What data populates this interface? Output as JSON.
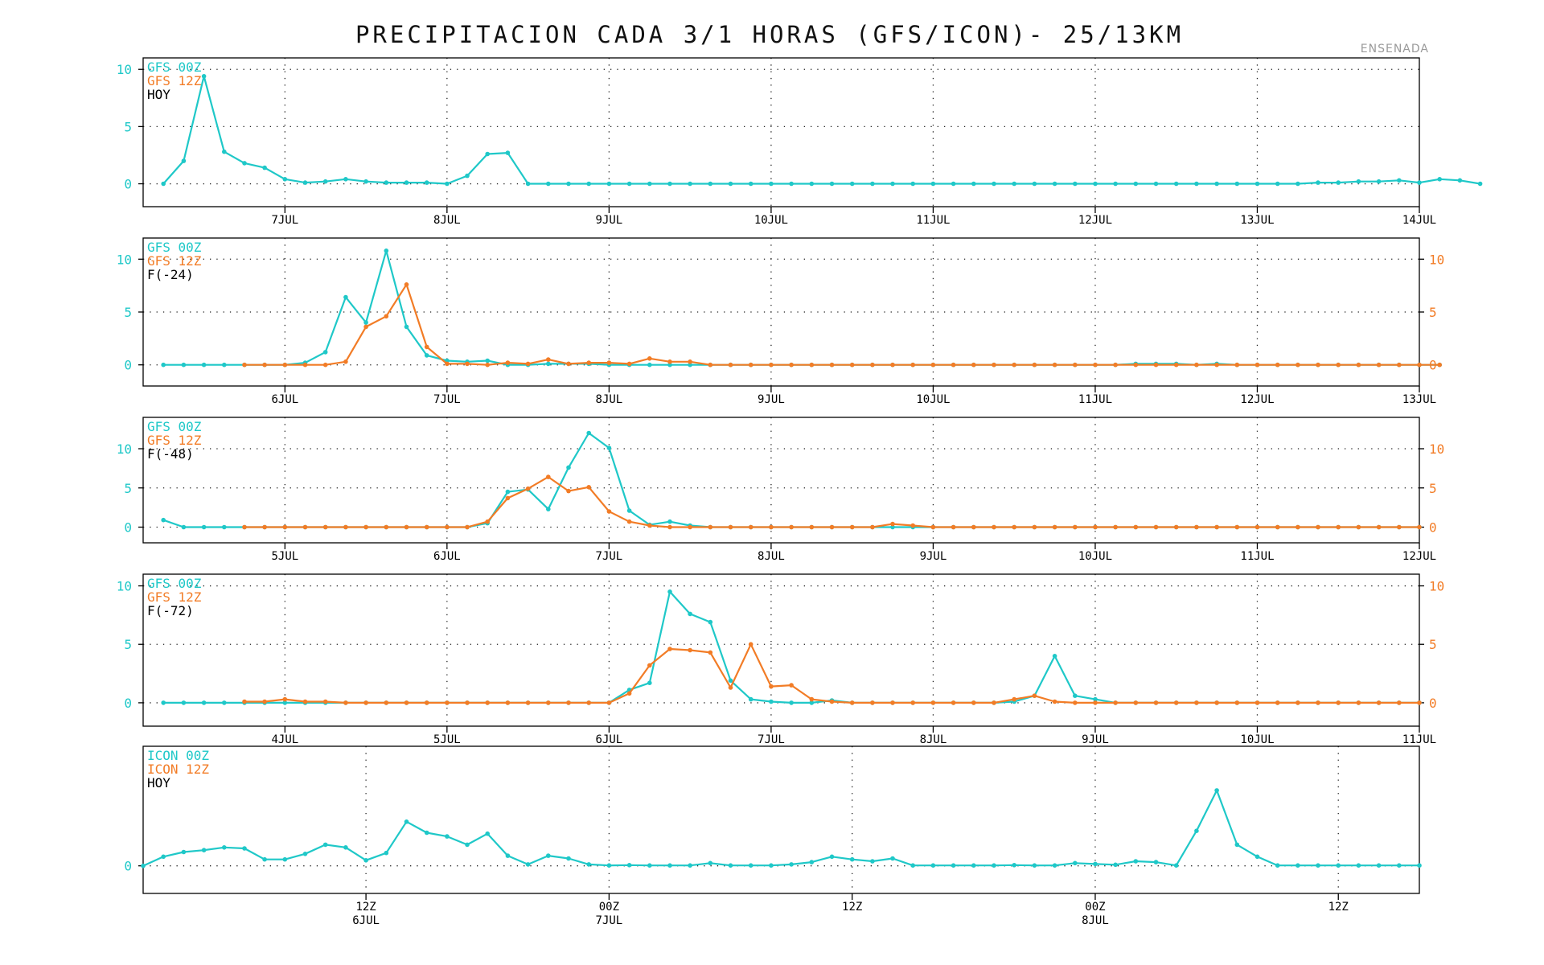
{
  "header": {
    "title": "PRECIPITACION CADA 3/1 HORAS (GFS/ICON)- 25/13KM",
    "site": "ENSENADA"
  },
  "colors": {
    "cyan": "#1fc8c8",
    "orange": "#f27c26",
    "axis": "#000000"
  },
  "chart_data": [
    {
      "type": "line",
      "title": "",
      "legend": [
        "GFS 00Z",
        "GFS 12Z",
        "HOY"
      ],
      "legend_placement": "top-left",
      "x_unit": "hours since 5JUL 00Z",
      "xlim": [
        27,
        216
      ],
      "ylim": [
        -2,
        11
      ],
      "y_ticks_left": [
        "0",
        "5",
        "10"
      ],
      "y_ticks_right": [],
      "x_ticks": [
        {
          "x": 48,
          "label": "7JUL"
        },
        {
          "x": 72,
          "label": "8JUL"
        },
        {
          "x": 96,
          "label": "9JUL"
        },
        {
          "x": 120,
          "label": "10JUL"
        },
        {
          "x": 144,
          "label": "11JUL"
        },
        {
          "x": 168,
          "label": "12JUL"
        },
        {
          "x": 192,
          "label": "13JUL"
        },
        {
          "x": 216,
          "label": "14JUL"
        }
      ],
      "series": [
        {
          "name": "GFS 00Z",
          "color": "cyan",
          "x_start": 30,
          "step": 3,
          "values": [
            0,
            2,
            9.4,
            2.8,
            1.8,
            1.4,
            0.4,
            0.1,
            0.2,
            0.4,
            0.2,
            0.1,
            0.1,
            0.1,
            0,
            0.7,
            2.6,
            2.7,
            0,
            0,
            0,
            0,
            0,
            0,
            0,
            0,
            0,
            0,
            0,
            0,
            0,
            0,
            0,
            0,
            0,
            0,
            0,
            0,
            0,
            0,
            0,
            0,
            0,
            0,
            0,
            0,
            0,
            0,
            0,
            0,
            0,
            0,
            0,
            0,
            0,
            0,
            0,
            0.1,
            0.1,
            0.2,
            0.2,
            0.3,
            0.1,
            0.4,
            0.3,
            0
          ]
        }
      ]
    },
    {
      "type": "line",
      "title": "",
      "legend": [
        "GFS 00Z",
        "GFS 12Z",
        "F(-24)"
      ],
      "legend_placement": "top-left",
      "x_unit": "hours since 5JUL 00Z",
      "xlim": [
        3,
        192
      ],
      "ylim": [
        -2,
        12
      ],
      "y_ticks_left": [
        "0",
        "5",
        "10"
      ],
      "y_ticks_right": [
        "0",
        "5",
        "10"
      ],
      "x_ticks": [
        {
          "x": 24,
          "label": "6JUL"
        },
        {
          "x": 48,
          "label": "7JUL"
        },
        {
          "x": 72,
          "label": "8JUL"
        },
        {
          "x": 96,
          "label": "9JUL"
        },
        {
          "x": 120,
          "label": "10JUL"
        },
        {
          "x": 144,
          "label": "11JUL"
        },
        {
          "x": 168,
          "label": "12JUL"
        },
        {
          "x": 192,
          "label": "13JUL"
        }
      ],
      "series": [
        {
          "name": "GFS 00Z",
          "color": "cyan",
          "x_start": 6,
          "step": 3,
          "values": [
            0,
            0,
            0,
            0,
            0,
            0,
            0,
            0.2,
            1.2,
            6.4,
            4,
            10.8,
            3.6,
            0.9,
            0.4,
            0.3,
            0.4,
            0,
            0,
            0.1,
            0.1,
            0.1,
            0,
            0,
            0,
            0,
            0,
            0,
            0,
            0,
            0,
            0,
            0,
            0,
            0,
            0,
            0,
            0,
            0,
            0,
            0,
            0,
            0,
            0,
            0,
            0,
            0,
            0,
            0.1,
            0.1,
            0.1,
            0,
            0.1,
            0,
            0,
            0,
            0,
            0,
            0,
            0,
            0,
            0,
            0,
            0
          ]
        },
        {
          "name": "GFS 12Z",
          "color": "orange",
          "x_start": 18,
          "step": 3,
          "values": [
            0,
            0,
            0,
            0,
            0,
            0.3,
            3.6,
            4.6,
            7.6,
            1.7,
            0.1,
            0.1,
            0,
            0.2,
            0.1,
            0.5,
            0.1,
            0.2,
            0.2,
            0.1,
            0.6,
            0.3,
            0.3,
            0,
            0,
            0,
            0,
            0,
            0,
            0,
            0,
            0,
            0,
            0,
            0,
            0,
            0,
            0,
            0,
            0,
            0,
            0,
            0,
            0,
            0,
            0,
            0,
            0,
            0,
            0,
            0,
            0,
            0,
            0,
            0,
            0,
            0,
            0,
            0,
            0
          ]
        }
      ]
    },
    {
      "type": "line",
      "title": "",
      "legend": [
        "GFS 00Z",
        "GFS 12Z",
        "F(-48)"
      ],
      "legend_placement": "top-left",
      "x_unit": "hours since 5JUL 00Z",
      "xlim": [
        -21,
        168
      ],
      "ylim": [
        -2,
        14
      ],
      "y_ticks_left": [
        "0",
        "5",
        "10"
      ],
      "y_ticks_right": [
        "0",
        "5",
        "10"
      ],
      "x_ticks": [
        {
          "x": 0,
          "label": "5JUL"
        },
        {
          "x": 24,
          "label": "6JUL"
        },
        {
          "x": 48,
          "label": "7JUL"
        },
        {
          "x": 72,
          "label": "8JUL"
        },
        {
          "x": 96,
          "label": "9JUL"
        },
        {
          "x": 120,
          "label": "10JUL"
        },
        {
          "x": 144,
          "label": "11JUL"
        },
        {
          "x": 168,
          "label": "12JUL"
        }
      ],
      "series": [
        {
          "name": "GFS 00Z",
          "color": "cyan",
          "x_start": -18,
          "step": 3,
          "values": [
            0.9,
            0,
            0,
            0,
            0,
            0,
            0,
            0,
            0,
            0,
            0,
            0,
            0,
            0,
            0,
            0,
            0.5,
            4.5,
            4.8,
            2.3,
            7.6,
            12,
            10.1,
            2.1,
            0.3,
            0.7,
            0.2,
            0,
            0,
            0,
            0,
            0,
            0,
            0,
            0,
            0,
            0,
            0,
            0,
            0,
            0,
            0,
            0,
            0,
            0,
            0,
            0,
            0,
            0,
            0,
            0,
            0,
            0,
            0,
            0,
            0,
            0,
            0,
            0,
            0,
            0,
            0,
            0
          ]
        },
        {
          "name": "GFS 12Z",
          "color": "orange",
          "x_start": -6,
          "step": 3,
          "values": [
            0,
            0,
            0,
            0,
            0,
            0,
            0,
            0,
            0,
            0,
            0,
            0,
            0.7,
            3.7,
            4.9,
            6.4,
            4.6,
            5.1,
            2,
            0.7,
            0.2,
            0,
            0,
            0,
            0,
            0,
            0,
            0,
            0,
            0,
            0,
            0,
            0.4,
            0.2,
            0,
            0,
            0,
            0,
            0,
            0,
            0,
            0,
            0,
            0,
            0,
            0,
            0,
            0,
            0,
            0,
            0,
            0,
            0,
            0,
            0,
            0,
            0,
            0,
            0
          ]
        }
      ]
    },
    {
      "type": "line",
      "title": "",
      "legend": [
        "GFS 00Z",
        "GFS 12Z",
        "F(-72)"
      ],
      "legend_placement": "top-left",
      "x_unit": "hours since 5JUL 00Z",
      "xlim": [
        -45,
        144
      ],
      "ylim": [
        -2,
        11
      ],
      "y_ticks_left": [
        "0",
        "5",
        "10"
      ],
      "y_ticks_right": [
        "0",
        "5",
        "10"
      ],
      "x_ticks": [
        {
          "x": -24,
          "label": "4JUL"
        },
        {
          "x": 0,
          "label": "5JUL"
        },
        {
          "x": 24,
          "label": "6JUL"
        },
        {
          "x": 48,
          "label": "7JUL"
        },
        {
          "x": 72,
          "label": "8JUL"
        },
        {
          "x": 96,
          "label": "9JUL"
        },
        {
          "x": 120,
          "label": "10JUL"
        },
        {
          "x": 144,
          "label": "11JUL"
        }
      ],
      "series": [
        {
          "name": "GFS 00Z",
          "color": "cyan",
          "x_start": -42,
          "step": 3,
          "values": [
            0,
            0,
            0,
            0,
            0,
            0,
            0,
            0,
            0,
            0,
            0,
            0,
            0,
            0,
            0,
            0,
            0,
            0,
            0,
            0,
            0,
            0,
            0,
            1.1,
            1.7,
            9.5,
            7.6,
            6.9,
            1.9,
            0.3,
            0.1,
            0,
            0,
            0.2,
            0,
            0,
            0,
            0,
            0,
            0,
            0,
            0,
            0.1,
            0.6,
            4,
            0.6,
            0.3,
            0,
            0,
            0,
            0,
            0,
            0,
            0,
            0,
            0,
            0,
            0,
            0,
            0,
            0,
            0,
            0
          ]
        },
        {
          "name": "GFS 12Z",
          "color": "orange",
          "x_start": -30,
          "step": 3,
          "values": [
            0.1,
            0.1,
            0.3,
            0.1,
            0.1,
            0,
            0,
            0,
            0,
            0,
            0,
            0,
            0,
            0,
            0,
            0,
            0,
            0,
            0,
            0.8,
            3.2,
            4.6,
            4.5,
            4.3,
            1.3,
            5,
            1.4,
            1.5,
            0.3,
            0.1,
            0,
            0,
            0,
            0,
            0,
            0,
            0,
            0,
            0.3,
            0.6,
            0.1,
            0,
            0,
            0,
            0,
            0,
            0,
            0,
            0,
            0,
            0,
            0,
            0,
            0,
            0,
            0,
            0,
            0,
            0
          ]
        }
      ]
    },
    {
      "type": "line",
      "title": "",
      "legend": [
        "ICON 00Z",
        "ICON 12Z",
        "HOY"
      ],
      "legend_placement": "top-left",
      "x_unit": "hours since 6JUL 00Z",
      "xlim": [
        1,
        64
      ],
      "ylim": [
        -1.5,
        6.5
      ],
      "y_ticks_left": [
        "0"
      ],
      "y_ticks_right": [],
      "x_ticks": [
        {
          "x": 12,
          "label": "12Z"
        },
        {
          "x": 24,
          "label": "00Z",
          "label2": "7JUL"
        },
        {
          "x": 36,
          "label": "12Z"
        },
        {
          "x": 48,
          "label": "00Z",
          "label2": "8JUL"
        },
        {
          "x": 60,
          "label": "12Z"
        }
      ],
      "x_ticks_first": {
        "label": "12Z",
        "label2": "6JUL"
      },
      "series": [
        {
          "name": "ICON 00Z",
          "color": "cyan",
          "x_start": 1,
          "step": 1,
          "values": [
            0,
            0.5,
            0.75,
            0.85,
            1,
            0.95,
            0.35,
            0.35,
            0.65,
            1.15,
            1,
            0.3,
            0.7,
            2.4,
            1.8,
            1.6,
            1.15,
            1.75,
            0.55,
            0.08,
            0.55,
            0.4,
            0.08,
            0.02,
            0.04,
            0.02,
            0.02,
            0.02,
            0.15,
            0.02,
            0.02,
            0.02,
            0.08,
            0.2,
            0.5,
            0.35,
            0.25,
            0.4,
            0.02,
            0.02,
            0.02,
            0.02,
            0.02,
            0.04,
            0.02,
            0.02,
            0.15,
            0.1,
            0.06,
            0.25,
            0.2,
            0.02,
            1.9,
            4.1,
            1.15,
            0.5,
            0.02,
            0.02,
            0.02,
            0.02,
            0.02,
            0.02,
            0.02,
            0.02
          ]
        }
      ]
    }
  ]
}
